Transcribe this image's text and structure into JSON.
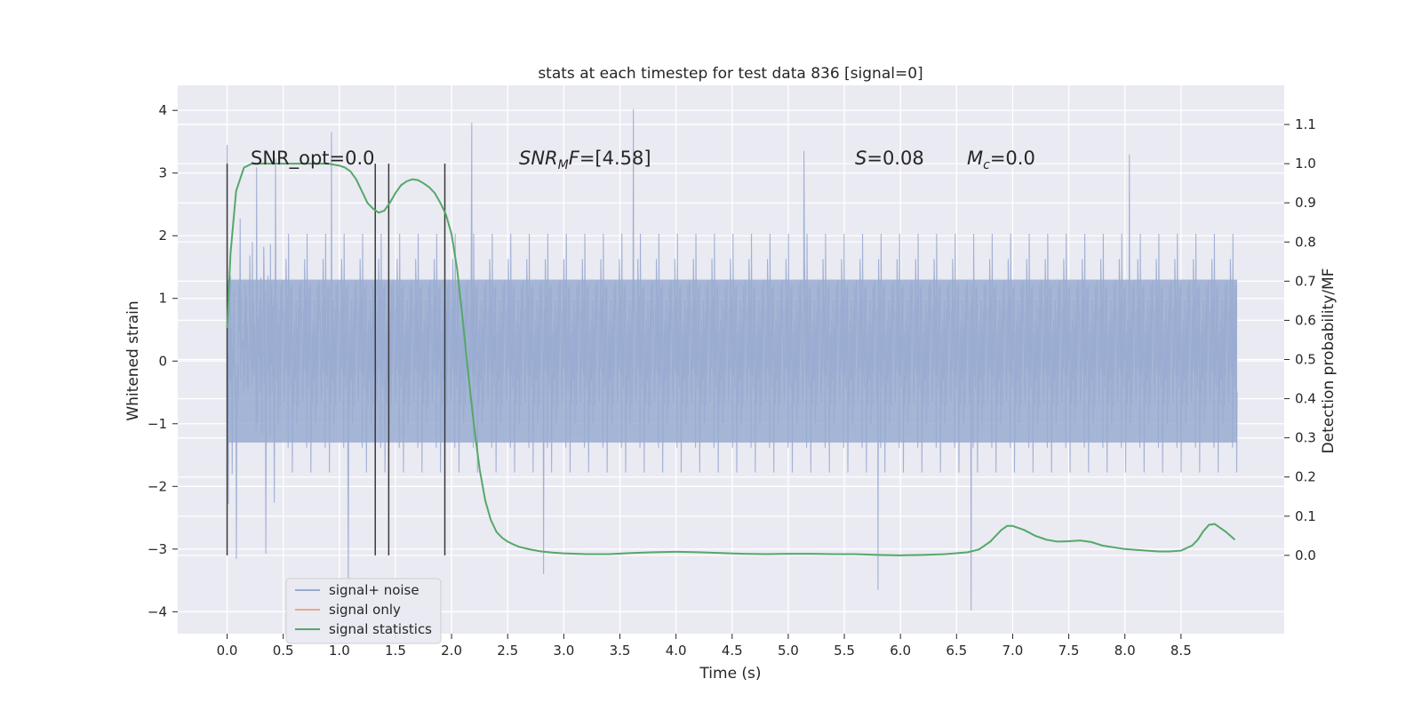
{
  "chart_data": {
    "type": "line",
    "title": "stats at each timestep for test data 836 [signal=0]",
    "xlabel": "Time (s)",
    "ylabel": "Whitened strain",
    "y2label": "Detection probability/MF",
    "xlim": [
      -0.44,
      9.42
    ],
    "ylim": [
      -4.35,
      4.4
    ],
    "y2lim": [
      -0.2,
      1.2
    ],
    "xticks": [
      0.0,
      0.5,
      1.0,
      1.5,
      2.0,
      2.5,
      3.0,
      3.5,
      4.0,
      4.5,
      5.0,
      5.5,
      6.0,
      6.5,
      7.0,
      7.5,
      8.0,
      8.5
    ],
    "xtick_labels": [
      "0.0",
      "0.5",
      "1.0",
      "1.5",
      "2.0",
      "2.5",
      "3.0",
      "3.5",
      "4.0",
      "4.5",
      "5.0",
      "5.5",
      "6.0",
      "6.5",
      "7.0",
      "7.5",
      "8.0",
      "8.5"
    ],
    "yticks": [
      4,
      3,
      2,
      1,
      0,
      -1,
      -2,
      -3,
      -4
    ],
    "ytick_labels": [
      "4",
      "3",
      "2",
      "1",
      "0",
      "−1",
      "−2",
      "−3",
      "−4"
    ],
    "y2ticks": [
      1.1,
      1.0,
      0.9,
      0.8,
      0.7,
      0.6,
      0.5,
      0.4,
      0.3,
      0.2,
      0.1,
      0.0
    ],
    "y2tick_labels": [
      "1.1",
      "1.0",
      "0.9",
      "0.8",
      "0.7",
      "0.6",
      "0.5",
      "0.4",
      "0.3",
      "0.2",
      "0.1",
      "0.0"
    ],
    "grid": true,
    "legend_position": "lower-left",
    "noise_series": {
      "name": "signal+ noise",
      "color": "#99abd0",
      "x_range": [
        0.0,
        9.0
      ],
      "typical_amplitude": 1.3,
      "spike_amplitude_range": [
        2.0,
        3.5
      ],
      "peak_values": [
        {
          "x": 0.0,
          "y": 3.45
        },
        {
          "x": 0.93,
          "y": 3.65
        },
        {
          "x": 1.08,
          "y": -3.55
        },
        {
          "x": 2.18,
          "y": 3.8
        },
        {
          "x": 2.82,
          "y": -3.4
        },
        {
          "x": 3.62,
          "y": 4.02
        },
        {
          "x": 5.14,
          "y": 3.35
        },
        {
          "x": 5.8,
          "y": -3.65
        },
        {
          "x": 6.63,
          "y": -3.98
        },
        {
          "x": 8.04,
          "y": 3.3
        }
      ]
    },
    "signal_only_series": {
      "name": "signal only",
      "color": "#e9a98a",
      "values": []
    },
    "statistics_series": {
      "name": "signal statistics",
      "color": "#55a868",
      "x": [
        0.0,
        0.03,
        0.08,
        0.15,
        0.22,
        0.3,
        0.4,
        0.5,
        0.6,
        0.7,
        0.8,
        0.9,
        1.0,
        1.05,
        1.1,
        1.15,
        1.2,
        1.25,
        1.3,
        1.35,
        1.4,
        1.45,
        1.5,
        1.55,
        1.6,
        1.65,
        1.7,
        1.75,
        1.8,
        1.85,
        1.9,
        1.95,
        2.0,
        2.05,
        2.1,
        2.15,
        2.2,
        2.25,
        2.3,
        2.35,
        2.4,
        2.45,
        2.5,
        2.55,
        2.6,
        2.7,
        2.8,
        2.9,
        3.0,
        3.2,
        3.4,
        3.6,
        3.8,
        4.0,
        4.2,
        4.4,
        4.6,
        4.8,
        5.0,
        5.2,
        5.4,
        5.6,
        5.8,
        6.0,
        6.2,
        6.4,
        6.6,
        6.7,
        6.8,
        6.85,
        6.9,
        6.95,
        7.0,
        7.1,
        7.2,
        7.3,
        7.4,
        7.5,
        7.6,
        7.7,
        7.8,
        8.0,
        8.2,
        8.3,
        8.4,
        8.5,
        8.6,
        8.65,
        8.7,
        8.75,
        8.8,
        8.9,
        8.98
      ],
      "values": [
        0.58,
        0.77,
        0.93,
        0.99,
        1.0,
        1.0,
        1.0,
        1.0,
        1.0,
        1.0,
        1.0,
        1.0,
        0.995,
        0.99,
        0.98,
        0.96,
        0.93,
        0.9,
        0.885,
        0.875,
        0.88,
        0.9,
        0.925,
        0.945,
        0.955,
        0.96,
        0.958,
        0.95,
        0.94,
        0.925,
        0.9,
        0.87,
        0.82,
        0.73,
        0.6,
        0.46,
        0.33,
        0.22,
        0.14,
        0.09,
        0.06,
        0.045,
        0.035,
        0.028,
        0.022,
        0.015,
        0.01,
        0.007,
        0.005,
        0.003,
        0.003,
        0.006,
        0.008,
        0.009,
        0.008,
        0.006,
        0.004,
        0.003,
        0.004,
        0.004,
        0.003,
        0.003,
        0.001,
        0.0,
        0.001,
        0.003,
        0.008,
        0.015,
        0.035,
        0.05,
        0.065,
        0.075,
        0.075,
        0.065,
        0.05,
        0.04,
        0.035,
        0.036,
        0.038,
        0.034,
        0.025,
        0.016,
        0.012,
        0.01,
        0.01,
        0.012,
        0.025,
        0.04,
        0.062,
        0.078,
        0.08,
        0.06,
        0.04
      ]
    },
    "vertical_lines": [
      {
        "x": 0.0,
        "y_from": -3.1,
        "y_to": 3.15
      },
      {
        "x": 1.32,
        "y_from": -3.1,
        "y_to": 3.15
      },
      {
        "x": 1.44,
        "y_from": -3.1,
        "y_to": 3.15
      },
      {
        "x": 1.94,
        "y_from": -3.1,
        "y_to": 3.15
      }
    ],
    "annotations": [
      {
        "id": "snr-opt",
        "x": 0.2,
        "y": 3.2,
        "text": "SNR_opt=0.0"
      },
      {
        "id": "snr-mf",
        "x": 2.6,
        "y": 3.2,
        "text": "[4.58]"
      },
      {
        "id": "s-stat",
        "x": 5.6,
        "y": 3.2,
        "text": "=0.08"
      },
      {
        "id": "mc",
        "x": 6.6,
        "y": 3.2,
        "text": "=0.0"
      }
    ],
    "annotation_symbols": {
      "snr": "SNR",
      "mf_sub": "M",
      "f_equals": "F=",
      "s": "S",
      "m": "M",
      "c_sub": "c"
    },
    "legend": [
      {
        "name": "signal+ noise",
        "color": "#99abd0"
      },
      {
        "name": "signal only",
        "color": "#e9a98a"
      },
      {
        "name": "signal statistics",
        "color": "#55a868"
      }
    ],
    "colors": {
      "plot_background": "#eaeaf2",
      "grid": "#ffffff",
      "vline": "#3a3a3a"
    }
  }
}
